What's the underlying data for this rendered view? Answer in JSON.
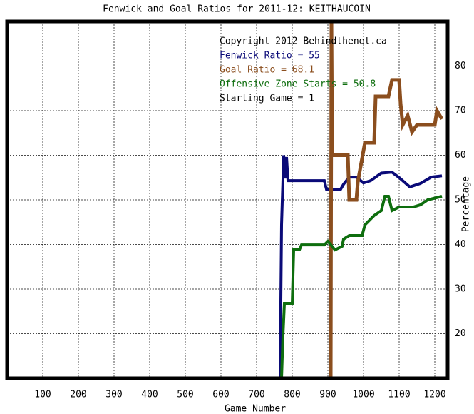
{
  "chart_data": {
    "type": "line",
    "title": "Fenwick and Goal Ratios for 2011-12: KEITHAUCOIN",
    "x_label": "Game Number",
    "y_label": "Percentage",
    "annotations": [
      "Copyright 2012 Behindthenet.ca",
      "Starting Game = 1"
    ],
    "xlim": [
      0,
      1236
    ],
    "xticks": [
      100,
      200,
      300,
      400,
      500,
      600,
      700,
      800,
      900,
      1000,
      1100,
      1200
    ],
    "ylim": [
      10,
      90
    ],
    "yticks": [
      20,
      30,
      40,
      50,
      60,
      70,
      80
    ],
    "grid": true,
    "series": [
      {
        "name": "Fenwick Ratio = 55",
        "color": "#0a0a78",
        "x": [
          766,
          770,
          776,
          782,
          784,
          788,
          890,
          896,
          936,
          944,
          960,
          980,
          1000,
          1020,
          1050,
          1080,
          1100,
          1130,
          1160,
          1190,
          1220
        ],
        "values": [
          10,
          44.4,
          60,
          54.8,
          59.6,
          54.3,
          54.3,
          52.4,
          52.4,
          53.5,
          55.1,
          55.1,
          53.8,
          54.3,
          56,
          56.2,
          55,
          52.9,
          53.7,
          55.1,
          55.4
        ]
      },
      {
        "name": "Goal Ratio = 68.1",
        "color": "#8b4e1e",
        "x": [
          908,
          910,
          912,
          956,
          960,
          980,
          984,
          1004,
          1030,
          1034,
          1070,
          1080,
          1100,
          1104,
          1110,
          1124,
          1136,
          1150,
          1200,
          1206,
          1220
        ],
        "values": [
          10,
          90,
          60,
          60,
          50,
          50,
          54,
          62.8,
          62.8,
          73.2,
          73.2,
          76.9,
          76.9,
          71.6,
          66.8,
          68.9,
          65.2,
          66.8,
          66.8,
          70,
          68.1
        ]
      },
      {
        "name": "Offensive Zone Starts = 50.8",
        "color": "#0e6e0e",
        "x": [
          770,
          774,
          778,
          800,
          804,
          820,
          826,
          890,
          900,
          920,
          940,
          944,
          960,
          996,
          1004,
          1030,
          1050,
          1060,
          1070,
          1080,
          1100,
          1140,
          1160,
          1180,
          1220
        ],
        "values": [
          10,
          19.6,
          26.8,
          26.8,
          38.8,
          38.8,
          39.9,
          39.9,
          40.7,
          38.8,
          39.6,
          41.2,
          42,
          42,
          44.4,
          46.5,
          47.6,
          50.8,
          50.8,
          47.6,
          48.4,
          48.4,
          48.9,
          50,
          50.8
        ]
      }
    ]
  }
}
